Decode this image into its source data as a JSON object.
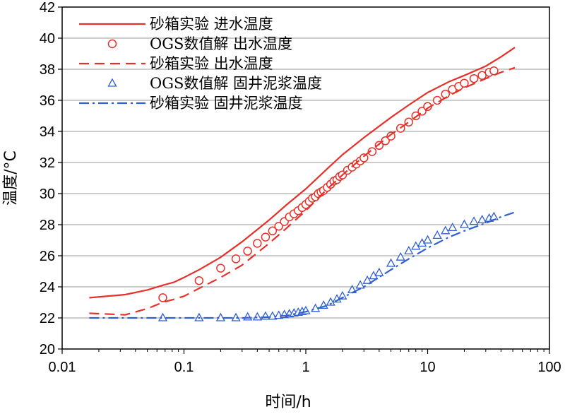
{
  "chart_data": {
    "type": "scatter",
    "xscale": "log",
    "xlim": [
      0.01,
      100
    ],
    "ylim": [
      20,
      42
    ],
    "xticks": [
      0.01,
      0.1,
      1,
      10,
      100
    ],
    "xtick_labels": [
      "0.01",
      "0.1",
      "1",
      "10",
      "100"
    ],
    "yticks": [
      20,
      22,
      24,
      26,
      28,
      30,
      32,
      34,
      36,
      38,
      40,
      42
    ],
    "ytick_labels": [
      "20",
      "22",
      "24",
      "26",
      "28",
      "30",
      "32",
      "34",
      "36",
      "38",
      "40",
      "42"
    ],
    "xlabel": "时间/h",
    "ylabel": "温度/°C",
    "legend_position": "top-left",
    "series": [
      {
        "name": "砂箱实验  进水温度",
        "style": "solid-line",
        "color": "#e8302a",
        "x": [
          0.0167,
          0.033,
          0.05,
          0.067,
          0.083,
          0.1,
          0.133,
          0.2,
          0.3,
          0.5,
          0.7,
          1.0,
          1.5,
          2,
          3,
          5,
          7,
          10,
          15,
          20,
          30,
          40,
          52
        ],
        "y": [
          23.3,
          23.5,
          23.8,
          24.1,
          24.3,
          24.6,
          25.1,
          25.9,
          26.9,
          28.3,
          29.3,
          30.3,
          31.6,
          32.5,
          33.6,
          34.9,
          35.7,
          36.5,
          37.2,
          37.6,
          38.2,
          38.8,
          39.4
        ]
      },
      {
        "name": "OGS数值解  出水温度",
        "style": "circle-markers",
        "color": "#e8302a",
        "x": [
          0.067,
          0.133,
          0.2,
          0.267,
          0.333,
          0.4,
          0.467,
          0.533,
          0.6,
          0.667,
          0.733,
          0.8,
          0.867,
          0.933,
          1.0,
          1.067,
          1.133,
          1.2,
          1.267,
          1.333,
          1.4,
          1.5,
          1.6,
          1.7,
          1.8,
          1.9,
          2.0,
          2.2,
          2.4,
          2.6,
          2.8,
          3.0,
          3.5,
          4.0,
          4.5,
          5.0,
          6.0,
          7.0,
          8.0,
          9.0,
          10.0,
          12.0,
          14.0,
          16.0,
          18.0,
          20.0,
          24.0,
          28.0,
          32.0,
          35.0
        ],
        "y": [
          23.3,
          24.4,
          25.2,
          25.8,
          26.3,
          26.8,
          27.2,
          27.6,
          27.9,
          28.2,
          28.5,
          28.7,
          28.9,
          29.1,
          29.3,
          29.5,
          29.7,
          29.8,
          30.0,
          30.1,
          30.2,
          30.4,
          30.6,
          30.8,
          30.9,
          31.1,
          31.2,
          31.5,
          31.7,
          31.9,
          32.1,
          32.3,
          32.7,
          33.1,
          33.4,
          33.7,
          34.2,
          34.6,
          35.0,
          35.3,
          35.6,
          36.0,
          36.4,
          36.7,
          36.9,
          37.1,
          37.4,
          37.6,
          37.8,
          37.9
        ]
      },
      {
        "name": "砂箱实验  出水温度",
        "style": "dashed-line",
        "color": "#e8302a",
        "x": [
          0.0167,
          0.033,
          0.05,
          0.067,
          0.083,
          0.1,
          0.133,
          0.2,
          0.3,
          0.5,
          0.7,
          1.0,
          1.5,
          2,
          3,
          5,
          7,
          10,
          15,
          20,
          30,
          40,
          52
        ],
        "y": [
          22.3,
          22.2,
          22.6,
          23.0,
          23.2,
          23.4,
          23.9,
          24.6,
          25.4,
          26.8,
          27.8,
          28.9,
          30.3,
          31.2,
          32.4,
          33.8,
          34.6,
          35.5,
          36.3,
          36.8,
          37.4,
          37.8,
          38.1
        ]
      },
      {
        "name": "OGS数值解  固井泥浆温度",
        "style": "triangle-markers",
        "color": "#2f5fd6",
        "x": [
          0.067,
          0.133,
          0.2,
          0.267,
          0.333,
          0.4,
          0.467,
          0.533,
          0.6,
          0.667,
          0.733,
          0.8,
          0.867,
          0.933,
          1.0,
          1.2,
          1.4,
          1.6,
          1.8,
          2.0,
          2.4,
          2.8,
          3.2,
          3.6,
          4.0,
          5.0,
          6.0,
          7.0,
          8.0,
          9.0,
          10.0,
          12.0,
          14.0,
          16.0,
          20.0,
          24.0,
          28.0,
          32.0,
          35.0
        ],
        "y": [
          22.0,
          22.0,
          22.0,
          22.0,
          22.05,
          22.05,
          22.1,
          22.1,
          22.15,
          22.2,
          22.25,
          22.3,
          22.35,
          22.4,
          22.45,
          22.6,
          22.8,
          23.0,
          23.2,
          23.4,
          23.8,
          24.1,
          24.4,
          24.7,
          24.9,
          25.5,
          25.9,
          26.3,
          26.6,
          26.8,
          27.0,
          27.3,
          27.6,
          27.8,
          28.0,
          28.2,
          28.3,
          28.4,
          28.5
        ]
      },
      {
        "name": "砂箱实验  固井泥浆温度",
        "style": "dashdot-line",
        "color": "#2f5fd6",
        "x": [
          0.0167,
          0.033,
          0.05,
          0.067,
          0.1,
          0.2,
          0.3,
          0.5,
          0.7,
          1.0,
          1.5,
          2,
          3,
          5,
          7,
          10,
          15,
          20,
          30,
          40,
          52
        ],
        "y": [
          22.0,
          22.0,
          22.0,
          22.0,
          22.0,
          22.0,
          22.0,
          22.05,
          22.15,
          22.4,
          22.8,
          23.3,
          24.0,
          25.1,
          25.8,
          26.5,
          27.2,
          27.6,
          28.1,
          28.5,
          28.8
        ]
      }
    ]
  }
}
